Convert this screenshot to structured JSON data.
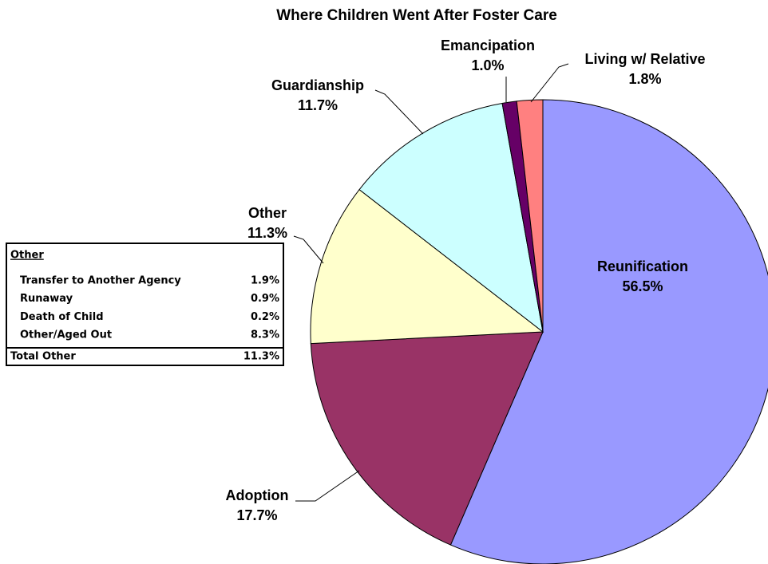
{
  "chart_data": {
    "type": "pie",
    "title": "Where Children Went After Foster Care",
    "categories": [
      "Reunification",
      "Adoption",
      "Other",
      "Guardianship",
      "Emancipation",
      "Living w/ Relative"
    ],
    "values": [
      56.5,
      17.7,
      11.3,
      11.7,
      1.0,
      1.8
    ],
    "value_labels": [
      "56.5%",
      "17.7%",
      "11.3%",
      "11.7%",
      "1.0%",
      "1.8%"
    ],
    "colors": [
      "#9999ff",
      "#993366",
      "#ffffcc",
      "#ccffff",
      "#660066",
      "#ff8080"
    ],
    "table": {
      "title": "Other",
      "rows": [
        [
          "Transfer to Another Agency",
          "1.9%"
        ],
        [
          "Runaway",
          "0.9%"
        ],
        [
          "Death of Child",
          "0.2%"
        ],
        [
          "Other/Aged Out",
          "8.3%"
        ]
      ],
      "total": [
        "Total Other",
        "11.3%"
      ]
    }
  }
}
